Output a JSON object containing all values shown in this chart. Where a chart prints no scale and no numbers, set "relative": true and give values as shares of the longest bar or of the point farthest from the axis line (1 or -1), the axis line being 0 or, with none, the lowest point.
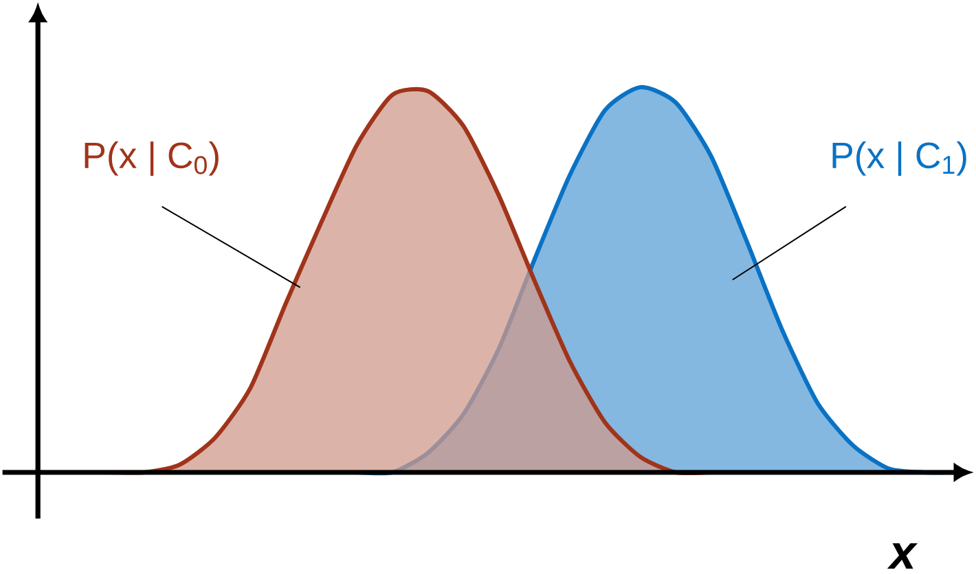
{
  "chart_data": {
    "type": "area",
    "relative": true,
    "xlabel": "x",
    "categories": [
      null,
      null,
      null,
      null,
      null,
      null,
      null,
      null,
      null,
      null,
      null,
      null,
      null,
      null,
      null,
      null,
      null,
      null,
      null,
      null,
      null,
      null,
      null,
      null,
      null,
      null,
      null
    ],
    "series": [
      {
        "name": "P(x | C$_{1}$)",
        "color": "#0a72c4",
        "values": [
          0,
          0,
          0,
          0,
          0,
          0,
          0,
          0,
          0,
          0,
          0,
          0.05,
          0.15,
          0.32,
          0.55,
          0.77,
          0.94,
          1.0,
          0.96,
          0.82,
          0.6,
          0.37,
          0.18,
          0.07,
          0.01,
          0,
          0
        ]
      },
      {
        "name": "P(x | C$_{0}$)",
        "color": "#a0341a",
        "values": [
          0,
          0,
          0,
          0,
          0.02,
          0.09,
          0.22,
          0.44,
          0.65,
          0.85,
          0.98,
          0.99,
          0.9,
          0.72,
          0.5,
          0.29,
          0.13,
          0.04,
          0,
          0,
          0,
          0,
          0,
          0,
          0,
          0,
          0
        ]
      }
    ]
  }
}
